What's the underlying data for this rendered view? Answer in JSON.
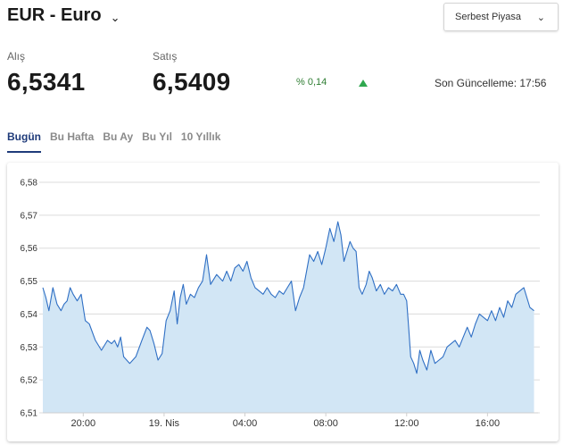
{
  "header": {
    "title": "EUR - Euro",
    "title_chevron_icon": "chevron-down-icon",
    "market_select": {
      "value": "Serbest Piyasa",
      "icon": "chevron-down-icon"
    }
  },
  "quote": {
    "buy_label": "Alış",
    "buy_value": "6,5341",
    "sell_label": "Satış",
    "sell_value": "6,5409",
    "change": "% 0,14",
    "trend_icon": "triangle-up-icon",
    "trend_color": "#2fa84f",
    "last_update": "Son Güncelleme: 17:56"
  },
  "tabs": [
    {
      "label": "Bugün",
      "active": true
    },
    {
      "label": "Bu Hafta",
      "active": false
    },
    {
      "label": "Bu Ay",
      "active": false
    },
    {
      "label": "Bu Yıl",
      "active": false
    },
    {
      "label": "10 Yıllık",
      "active": false
    }
  ],
  "chart_data": {
    "type": "area",
    "line_color": "#2f6fc4",
    "fill_color": "#d2e6f5",
    "grid": true,
    "ylim": [
      6.51,
      6.58
    ],
    "yticks": [
      6.51,
      6.52,
      6.53,
      6.54,
      6.55,
      6.56,
      6.57,
      6.58
    ],
    "ytick_labels": [
      "6,51",
      "6,52",
      "6,53",
      "6,54",
      "6,55",
      "6,56",
      "6,57",
      "6,58"
    ],
    "xlim": [
      18.0,
      42.5
    ],
    "xticks": [
      20,
      24,
      28,
      32,
      36,
      40
    ],
    "xtick_labels": [
      "20:00",
      "19. Nis",
      "04:00",
      "08:00",
      "12:00",
      "16:00"
    ],
    "series": [
      {
        "x": [
          18.0,
          18.15,
          18.3,
          18.5,
          18.7,
          18.9,
          19.05,
          19.2,
          19.35,
          19.5,
          19.7,
          19.9,
          20.1,
          20.3,
          20.6,
          20.9,
          21.2,
          21.4,
          21.55,
          21.7,
          21.85,
          22.0,
          22.3,
          22.6,
          22.9,
          23.15,
          23.3,
          23.5,
          23.7,
          23.9,
          24.1,
          24.3,
          24.5,
          24.65,
          24.8,
          24.95,
          25.1,
          25.3,
          25.5,
          25.7,
          25.9,
          26.1,
          26.3,
          26.6,
          26.9,
          27.1,
          27.3,
          27.5,
          27.7,
          27.9,
          28.1,
          28.3,
          28.5,
          28.7,
          28.9,
          29.1,
          29.3,
          29.5,
          29.7,
          29.9,
          30.1,
          30.3,
          30.5,
          30.7,
          30.9,
          31.05,
          31.2,
          31.4,
          31.6,
          31.8,
          32.0,
          32.2,
          32.4,
          32.6,
          32.75,
          32.9,
          33.05,
          33.2,
          33.35,
          33.5,
          33.65,
          33.8,
          34.0,
          34.15,
          34.3,
          34.5,
          34.7,
          34.9,
          35.1,
          35.3,
          35.5,
          35.7,
          35.85,
          36.0,
          36.1,
          36.2,
          36.35,
          36.5,
          36.65,
          36.8,
          37.0,
          37.2,
          37.4,
          37.6,
          37.8,
          38.0,
          38.2,
          38.4,
          38.6,
          38.8,
          39.0,
          39.2,
          39.4,
          39.6,
          39.8,
          40.0,
          40.2,
          40.4,
          40.6,
          40.8,
          41.0,
          41.2,
          41.4,
          41.6,
          41.8,
          41.95,
          42.1,
          42.3
        ],
        "y": [
          6.548,
          6.545,
          6.541,
          6.548,
          6.543,
          6.541,
          6.543,
          6.544,
          6.548,
          6.546,
          6.544,
          6.546,
          6.538,
          6.537,
          6.532,
          6.529,
          6.532,
          6.531,
          6.532,
          6.53,
          6.533,
          6.527,
          6.525,
          6.527,
          6.532,
          6.536,
          6.535,
          6.531,
          6.526,
          6.528,
          6.538,
          6.541,
          6.547,
          6.537,
          6.545,
          6.549,
          6.543,
          6.546,
          6.545,
          6.548,
          6.55,
          6.558,
          6.549,
          6.552,
          6.55,
          6.553,
          6.55,
          6.554,
          6.555,
          6.553,
          6.556,
          6.551,
          6.548,
          6.547,
          6.546,
          6.548,
          6.546,
          6.545,
          6.547,
          6.546,
          6.548,
          6.55,
          6.541,
          6.545,
          6.548,
          6.553,
          6.558,
          6.556,
          6.559,
          6.555,
          6.56,
          6.566,
          6.562,
          6.568,
          6.564,
          6.556,
          6.559,
          6.562,
          6.56,
          6.559,
          6.548,
          6.546,
          6.549,
          6.553,
          6.551,
          6.547,
          6.549,
          6.546,
          6.548,
          6.547,
          6.549,
          6.546,
          6.546,
          6.544,
          6.536,
          6.527,
          6.525,
          6.522,
          6.529,
          6.526,
          6.523,
          6.529,
          6.525,
          6.526,
          6.527,
          6.53,
          6.531,
          6.532,
          6.53,
          6.533,
          6.536,
          6.533,
          6.537,
          6.54,
          6.539,
          6.538,
          6.541,
          6.538,
          6.542,
          6.539,
          6.544,
          6.542,
          6.546,
          6.547,
          6.548,
          6.545,
          6.542,
          6.541
        ]
      }
    ]
  }
}
